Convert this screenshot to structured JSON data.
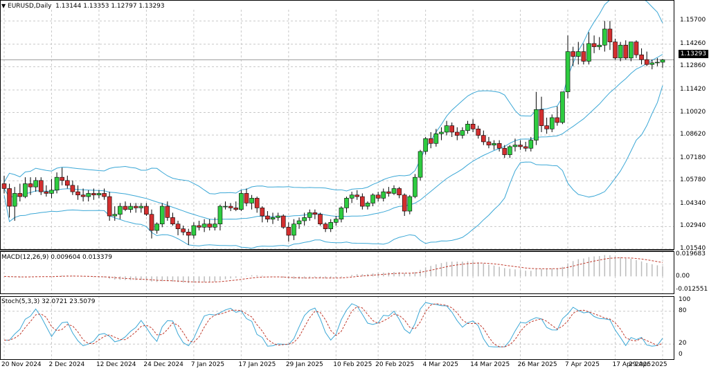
{
  "header": {
    "symbol_tf": "EURUSD,Daily",
    "ohlc": "1.13144 1.13353 1.12797 1.13293",
    "dropdown_icon": "triangle-down"
  },
  "price_axis": {
    "current": "1.13293",
    "ticks": [
      "1.15700",
      "1.14260",
      "1.12860",
      "1.11420",
      "1.10020",
      "1.08620",
      "1.07180",
      "1.05780",
      "1.04340",
      "1.02940",
      "1.01540"
    ]
  },
  "macd": {
    "label": "MACD(12,26,9) 0.009604 0.013379",
    "ticks": [
      "0.019683",
      "0.00",
      "-0.012551"
    ]
  },
  "stoch": {
    "label": "Stoch(5,3,3) 32.0721 23.5079",
    "ticks": [
      "100",
      "80",
      "20",
      "0"
    ]
  },
  "time_axis": [
    "20 Nov 2024",
    "2 Dec 2024",
    "12 Dec 2024",
    "24 Dec 2024",
    "7 Jan 2025",
    "17 Jan 2025",
    "29 Jan 2025",
    "10 Feb 2025",
    "20 Feb 2025",
    "4 Mar 2025",
    "14 Mar 2025",
    "26 Mar 2025",
    "7 Apr 2025",
    "17 Apr 2025",
    "29 Apr 2025"
  ],
  "colors": {
    "bull": "#2ecc40",
    "bear": "#d32f2f",
    "bands": "#3aa7d6",
    "signal": "#c0392b",
    "grid": "#c8c8c8"
  },
  "chart_data": {
    "type": "candlestick",
    "ylim": [
      1.0154,
      1.164
    ],
    "candles": [
      [
        1.056,
        1.061,
        1.05,
        1.053
      ],
      [
        1.053,
        1.056,
        1.035,
        1.042
      ],
      [
        1.042,
        1.054,
        1.033,
        1.05
      ],
      [
        1.05,
        1.056,
        1.045,
        1.048
      ],
      [
        1.048,
        1.06,
        1.047,
        1.056
      ],
      [
        1.056,
        1.06,
        1.049,
        1.054
      ],
      [
        1.054,
        1.06,
        1.051,
        1.058
      ],
      [
        1.058,
        1.06,
        1.049,
        1.051
      ],
      [
        1.051,
        1.055,
        1.048,
        1.05
      ],
      [
        1.05,
        1.059,
        1.047,
        1.052
      ],
      [
        1.052,
        1.063,
        1.05,
        1.06
      ],
      [
        1.06,
        1.066,
        1.055,
        1.058
      ],
      [
        1.058,
        1.061,
        1.053,
        1.055
      ],
      [
        1.055,
        1.058,
        1.049,
        1.051
      ],
      [
        1.051,
        1.055,
        1.046,
        1.049
      ],
      [
        1.049,
        1.053,
        1.045,
        1.048
      ],
      [
        1.048,
        1.052,
        1.045,
        1.05
      ],
      [
        1.05,
        1.053,
        1.046,
        1.049
      ],
      [
        1.049,
        1.052,
        1.047,
        1.05
      ],
      [
        1.05,
        1.053,
        1.046,
        1.048
      ],
      [
        1.048,
        1.051,
        1.033,
        1.036
      ],
      [
        1.036,
        1.042,
        1.033,
        1.037
      ],
      [
        1.037,
        1.044,
        1.034,
        1.042
      ],
      [
        1.042,
        1.045,
        1.039,
        1.04
      ],
      [
        1.04,
        1.044,
        1.038,
        1.042
      ],
      [
        1.042,
        1.044,
        1.038,
        1.041
      ],
      [
        1.041,
        1.044,
        1.038,
        1.042
      ],
      [
        1.042,
        1.044,
        1.036,
        1.037
      ],
      [
        1.037,
        1.04,
        1.022,
        1.027
      ],
      [
        1.027,
        1.032,
        1.025,
        1.031
      ],
      [
        1.031,
        1.044,
        1.029,
        1.042
      ],
      [
        1.042,
        1.045,
        1.033,
        1.035
      ],
      [
        1.035,
        1.038,
        1.03,
        1.031
      ],
      [
        1.031,
        1.033,
        1.024,
        1.028
      ],
      [
        1.028,
        1.03,
        1.024,
        1.026
      ],
      [
        1.026,
        1.028,
        1.018,
        1.024
      ],
      [
        1.024,
        1.032,
        1.022,
        1.03
      ],
      [
        1.03,
        1.033,
        1.027,
        1.029
      ],
      [
        1.029,
        1.034,
        1.026,
        1.031
      ],
      [
        1.031,
        1.034,
        1.027,
        1.029
      ],
      [
        1.029,
        1.035,
        1.027,
        1.031
      ],
      [
        1.031,
        1.043,
        1.027,
        1.042
      ],
      [
        1.042,
        1.045,
        1.04,
        1.042
      ],
      [
        1.042,
        1.044,
        1.039,
        1.041
      ],
      [
        1.041,
        1.045,
        1.039,
        1.04
      ],
      [
        1.04,
        1.052,
        1.039,
        1.05
      ],
      [
        1.05,
        1.053,
        1.042,
        1.044
      ],
      [
        1.044,
        1.049,
        1.04,
        1.047
      ],
      [
        1.047,
        1.048,
        1.038,
        1.041
      ],
      [
        1.041,
        1.042,
        1.032,
        1.036
      ],
      [
        1.036,
        1.039,
        1.032,
        1.034
      ],
      [
        1.034,
        1.038,
        1.031,
        1.035
      ],
      [
        1.035,
        1.038,
        1.033,
        1.036
      ],
      [
        1.036,
        1.037,
        1.028,
        1.029
      ],
      [
        1.029,
        1.032,
        1.02,
        1.024
      ],
      [
        1.024,
        1.034,
        1.021,
        1.031
      ],
      [
        1.031,
        1.035,
        1.028,
        1.033
      ],
      [
        1.033,
        1.038,
        1.03,
        1.035
      ],
      [
        1.035,
        1.04,
        1.033,
        1.038
      ],
      [
        1.038,
        1.04,
        1.034,
        1.037
      ],
      [
        1.037,
        1.038,
        1.03,
        1.031
      ],
      [
        1.031,
        1.032,
        1.026,
        1.028
      ],
      [
        1.028,
        1.034,
        1.026,
        1.032
      ],
      [
        1.032,
        1.036,
        1.03,
        1.034
      ],
      [
        1.034,
        1.042,
        1.032,
        1.041
      ],
      [
        1.041,
        1.048,
        1.038,
        1.047
      ],
      [
        1.047,
        1.051,
        1.044,
        1.049
      ],
      [
        1.049,
        1.052,
        1.046,
        1.048
      ],
      [
        1.048,
        1.05,
        1.04,
        1.042
      ],
      [
        1.042,
        1.045,
        1.04,
        1.044
      ],
      [
        1.044,
        1.05,
        1.042,
        1.049
      ],
      [
        1.049,
        1.051,
        1.045,
        1.047
      ],
      [
        1.047,
        1.053,
        1.045,
        1.051
      ],
      [
        1.051,
        1.054,
        1.048,
        1.05
      ],
      [
        1.05,
        1.055,
        1.049,
        1.053
      ],
      [
        1.053,
        1.054,
        1.047,
        1.049
      ],
      [
        1.049,
        1.05,
        1.036,
        1.039
      ],
      [
        1.039,
        1.049,
        1.037,
        1.048
      ],
      [
        1.048,
        1.062,
        1.047,
        1.06
      ],
      [
        1.06,
        1.077,
        1.058,
        1.076
      ],
      [
        1.076,
        1.085,
        1.074,
        1.084
      ],
      [
        1.084,
        1.088,
        1.078,
        1.081
      ],
      [
        1.081,
        1.09,
        1.079,
        1.087
      ],
      [
        1.087,
        1.091,
        1.083,
        1.088
      ],
      [
        1.088,
        1.095,
        1.086,
        1.092
      ],
      [
        1.092,
        1.094,
        1.085,
        1.088
      ],
      [
        1.088,
        1.091,
        1.083,
        1.086
      ],
      [
        1.086,
        1.091,
        1.084,
        1.089
      ],
      [
        1.089,
        1.095,
        1.087,
        1.093
      ],
      [
        1.093,
        1.096,
        1.088,
        1.09
      ],
      [
        1.09,
        1.092,
        1.084,
        1.086
      ],
      [
        1.086,
        1.089,
        1.08,
        1.082
      ],
      [
        1.082,
        1.085,
        1.078,
        1.08
      ],
      [
        1.08,
        1.083,
        1.077,
        1.081
      ],
      [
        1.081,
        1.083,
        1.076,
        1.078
      ],
      [
        1.078,
        1.08,
        1.072,
        1.074
      ],
      [
        1.074,
        1.08,
        1.072,
        1.079
      ],
      [
        1.079,
        1.084,
        1.076,
        1.08
      ],
      [
        1.08,
        1.083,
        1.077,
        1.079
      ],
      [
        1.079,
        1.082,
        1.076,
        1.078
      ],
      [
        1.078,
        1.085,
        1.076,
        1.083
      ],
      [
        1.083,
        1.113,
        1.08,
        1.102
      ],
      [
        1.102,
        1.11,
        1.088,
        1.092
      ],
      [
        1.092,
        1.097,
        1.087,
        1.09
      ],
      [
        1.09,
        1.099,
        1.088,
        1.097
      ],
      [
        1.097,
        1.104,
        1.092,
        1.094
      ],
      [
        1.094,
        1.113,
        1.093,
        1.113
      ],
      [
        1.113,
        1.148,
        1.109,
        1.138
      ],
      [
        1.138,
        1.141,
        1.129,
        1.135
      ],
      [
        1.135,
        1.144,
        1.13,
        1.138
      ],
      [
        1.138,
        1.143,
        1.13,
        1.132
      ],
      [
        1.132,
        1.15,
        1.13,
        1.143
      ],
      [
        1.143,
        1.148,
        1.137,
        1.141
      ],
      [
        1.141,
        1.147,
        1.139,
        1.142
      ],
      [
        1.142,
        1.157,
        1.138,
        1.152
      ],
      [
        1.152,
        1.157,
        1.139,
        1.144
      ],
      [
        1.144,
        1.146,
        1.133,
        1.134
      ],
      [
        1.134,
        1.144,
        1.132,
        1.142
      ],
      [
        1.142,
        1.145,
        1.133,
        1.134
      ],
      [
        1.134,
        1.144,
        1.132,
        1.144
      ],
      [
        1.144,
        1.145,
        1.134,
        1.136
      ],
      [
        1.136,
        1.14,
        1.13,
        1.133
      ],
      [
        1.133,
        1.138,
        1.129,
        1.13
      ],
      [
        1.13,
        1.133,
        1.127,
        1.131
      ],
      [
        1.131,
        1.134,
        1.129,
        1.1314
      ],
      [
        1.1314,
        1.1335,
        1.128,
        1.1329
      ]
    ],
    "series_note": "Bollinger Bands, MACD(12,26,9) histogram and signal, Stoch(5,3,3) main and signal"
  }
}
